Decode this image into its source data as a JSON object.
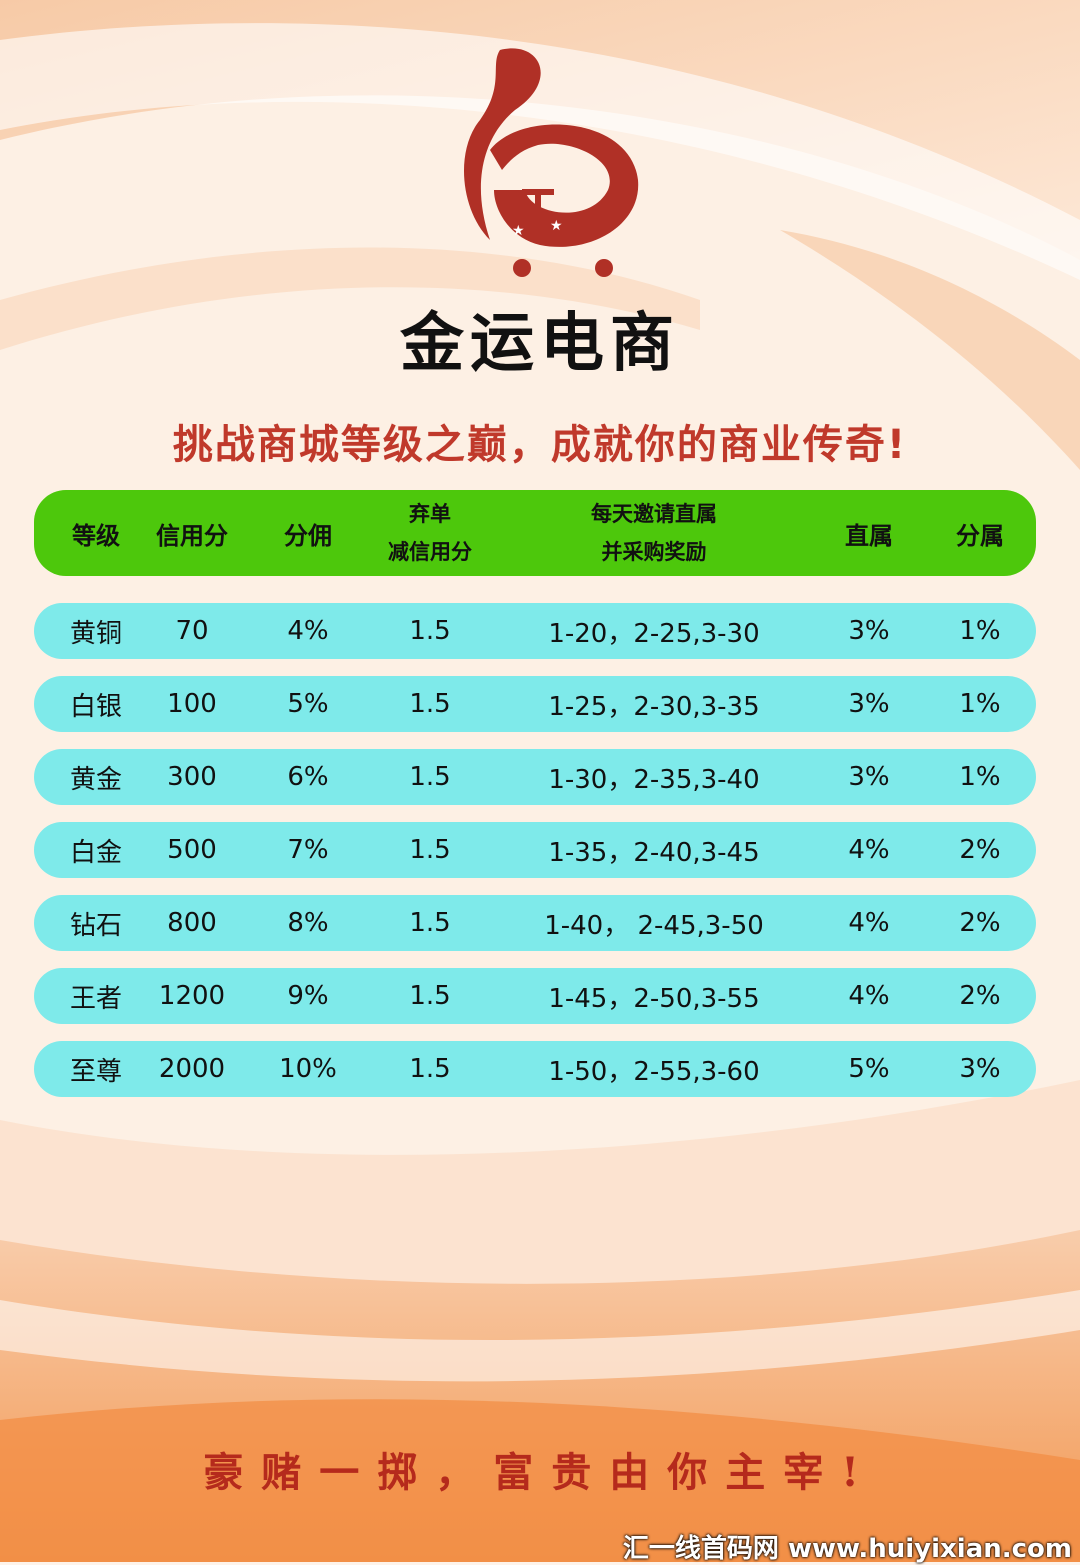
{
  "brand": {
    "name": "金运电商"
  },
  "tagline": "挑战商城等级之巅，成就你的商业传奇!",
  "table": {
    "headers": {
      "level": "等级",
      "credit": "信用分",
      "commission": "分佣",
      "abandon_line1": "弃单",
      "abandon_line2": "减信用分",
      "invite_line1": "每天邀请直属",
      "invite_line2": "并采购奖励",
      "direct": "直属",
      "sub": "分属"
    },
    "rows": [
      {
        "level": "黄铜",
        "credit": "70",
        "commission": "4%",
        "abandon": "1.5",
        "invite": "1-20，2-25,3-30",
        "direct": "3%",
        "sub": "1%"
      },
      {
        "level": "白银",
        "credit": "100",
        "commission": "5%",
        "abandon": "1.5",
        "invite": "1-25，2-30,3-35",
        "direct": "3%",
        "sub": "1%"
      },
      {
        "level": "黄金",
        "credit": "300",
        "commission": "6%",
        "abandon": "1.5",
        "invite": "1-30，2-35,3-40",
        "direct": "3%",
        "sub": "1%"
      },
      {
        "level": "白金",
        "credit": "500",
        "commission": "7%",
        "abandon": "1.5",
        "invite": "1-35，2-40,3-45",
        "direct": "4%",
        "sub": "2%"
      },
      {
        "level": "钻石",
        "credit": "800",
        "commission": "8%",
        "abandon": "1.5",
        "invite": "1-40， 2-45,3-50",
        "direct": "4%",
        "sub": "2%"
      },
      {
        "level": "王者",
        "credit": "1200",
        "commission": "9%",
        "abandon": "1.5",
        "invite": "1-45，2-50,3-55",
        "direct": "4%",
        "sub": "2%"
      },
      {
        "level": "至尊",
        "credit": "2000",
        "commission": "10%",
        "abandon": "1.5",
        "invite": "1-50，2-55,3-60",
        "direct": "5%",
        "sub": "3%"
      }
    ]
  },
  "slogan": "豪赌一掷，富贵由你主宰!",
  "watermark": "汇一线首码网 www.huiyixian.com",
  "colors": {
    "header": "#4dc80c",
    "row": "#7eeaea",
    "tagline": "#c0392b",
    "logo": "#b03026"
  }
}
